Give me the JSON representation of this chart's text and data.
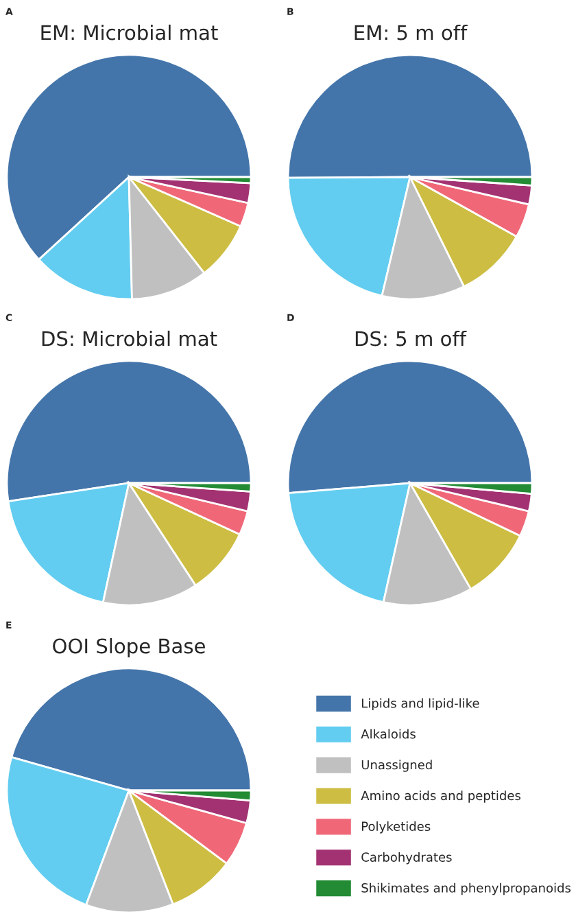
{
  "chart_data": [
    {
      "type": "pie",
      "title": "EM: Microbial mat",
      "annotations": [
        "A"
      ],
      "legend": "bottom right",
      "categories": [
        "Lipids and lipid-like",
        "Alkaloids",
        "Unassigned",
        "Amino acids and peptides",
        "Polyketides",
        "Carbohydrates",
        "Shikimates and phenylpropanoids"
      ],
      "values": [
        61.8,
        13.6,
        10.2,
        7.8,
        3.2,
        2.6,
        0.8
      ],
      "colors": [
        "#4475aa",
        "#62cdf0",
        "#c0c0c0",
        "#cdbd42",
        "#f06878",
        "#a33272",
        "#228b34"
      ]
    },
    {
      "type": "pie",
      "title": "EM: 5 m off",
      "annotations": [
        "B"
      ],
      "categories": [
        null,
        null,
        null,
        null,
        null,
        null,
        null
      ],
      "values": [
        50.1,
        21.2,
        11.0,
        9.6,
        4.5,
        2.5,
        1.1
      ],
      "colors": [
        "#4475aa",
        "#62cdf0",
        "#c0c0c0",
        "#cdbd42",
        "#f06878",
        "#a33272",
        "#228b34"
      ]
    },
    {
      "type": "pie",
      "title": "DS: Microbial mat",
      "annotations": [
        "C"
      ],
      "categories": [
        null,
        null,
        null,
        null,
        null,
        null,
        null
      ],
      "values": [
        52.4,
        19.2,
        12.6,
        8.9,
        3.2,
        2.6,
        1.1
      ],
      "colors": [
        "#4475aa",
        "#62cdf0",
        "#c0c0c0",
        "#cdbd42",
        "#f06878",
        "#a33272",
        "#228b34"
      ]
    },
    {
      "type": "pie",
      "title": "DS: 5 m off",
      "annotations": [
        "D"
      ],
      "categories": [
        null,
        null,
        null,
        null,
        null,
        null,
        null
      ],
      "values": [
        51.3,
        20.2,
        11.8,
        9.6,
        3.4,
        2.3,
        1.4
      ],
      "colors": [
        "#4475aa",
        "#62cdf0",
        "#c0c0c0",
        "#cdbd42",
        "#f06878",
        "#a33272",
        "#228b34"
      ]
    },
    {
      "type": "pie",
      "title": "OOI Slope Base",
      "annotations": [
        "E"
      ],
      "categories": [
        null,
        null,
        null,
        null,
        null,
        null,
        null
      ],
      "values": [
        45.6,
        23.7,
        11.6,
        8.9,
        5.9,
        3.0,
        1.3
      ],
      "colors": [
        "#4475aa",
        "#62cdf0",
        "#c0c0c0",
        "#cdbd42",
        "#f06878",
        "#a33272",
        "#228b34"
      ]
    }
  ]
}
